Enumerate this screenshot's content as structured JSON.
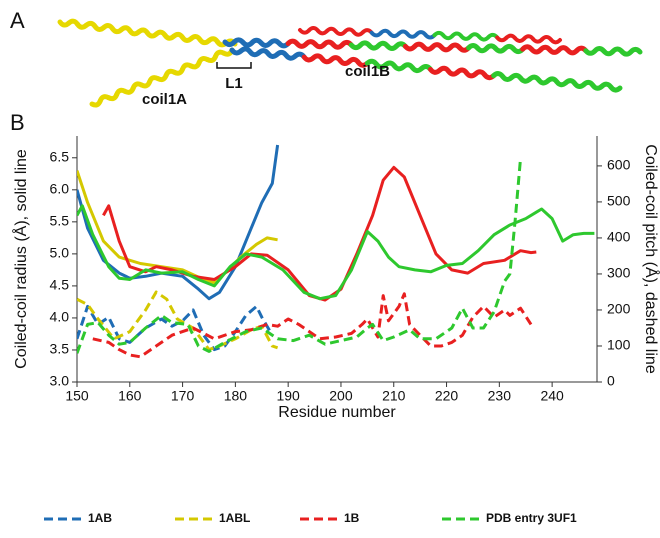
{
  "panel_a": {
    "letter": "A",
    "labels": [
      "coil1A",
      "L1",
      "coil1B"
    ]
  },
  "chart_data": {
    "type": "line",
    "panel_letter": "B",
    "x_label": "Residue number",
    "y_label": "Coiled-coil radius (Å),  solid line",
    "y2_label": "Coiled-coil pitch (Å), dashed line",
    "xlim": [
      150,
      248.5
    ],
    "xticks": [
      150,
      160,
      170,
      180,
      190,
      200,
      210,
      220,
      230,
      240
    ],
    "ylim": [
      3.0,
      6.84
    ],
    "yticks": [
      {
        "value": 3,
        "label": "3.0"
      },
      {
        "value": 3.5,
        "label": "3.5"
      },
      {
        "value": 4,
        "label": "4.0"
      },
      {
        "value": 4.5,
        "label": "4.5"
      },
      {
        "value": 5,
        "label": "5.0"
      },
      {
        "value": 5.5,
        "label": "5.5"
      },
      {
        "value": 6,
        "label": "6.0"
      },
      {
        "value": 6.5,
        "label": "6.5"
      }
    ],
    "y2lim": [
      0,
      683
    ],
    "y2ticks": [
      0,
      100,
      200,
      300,
      400,
      500,
      600
    ],
    "legend": "bottom",
    "grid": false,
    "series": [
      {
        "name": "1AB",
        "color": "#1f6db5",
        "radius": {
          "line_style": "solid",
          "x": [
            150,
            152,
            155,
            158,
            160,
            163,
            166,
            170,
            173,
            175,
            177,
            180,
            183,
            185,
            187,
            188
          ],
          "values": [
            6.0,
            5.4,
            4.9,
            4.7,
            4.62,
            4.65,
            4.7,
            4.65,
            4.45,
            4.3,
            4.4,
            4.8,
            5.4,
            5.8,
            6.1,
            6.7
          ]
        },
        "pitch": {
          "line_style": "dashed",
          "axis": "y2",
          "x": [
            150,
            152,
            154,
            156,
            158,
            160,
            163,
            166,
            168,
            170,
            172,
            174,
            176,
            178,
            180,
            182,
            184,
            185,
            187
          ],
          "values": [
            120,
            210,
            160,
            180,
            120,
            110,
            150,
            175,
            155,
            170,
            200,
            130,
            90,
            100,
            140,
            185,
            210,
            180,
            130
          ]
        }
      },
      {
        "name": "1ABL",
        "color": "#d4c800",
        "radius": {
          "line_style": "solid",
          "x": [
            150,
            152,
            155,
            158,
            162,
            166,
            170,
            174,
            176,
            178,
            181,
            184,
            186,
            188
          ],
          "values": [
            6.3,
            5.8,
            5.2,
            4.95,
            4.85,
            4.8,
            4.75,
            4.6,
            4.55,
            4.7,
            4.95,
            5.15,
            5.25,
            5.22
          ]
        },
        "pitch": {
          "line_style": "dashed",
          "axis": "y2",
          "x": [
            150,
            152,
            154,
            157,
            160,
            163,
            165,
            167,
            169,
            172,
            175,
            177,
            180,
            183,
            185,
            187,
            188
          ],
          "values": [
            230,
            215,
            175,
            120,
            140,
            200,
            250,
            230,
            175,
            150,
            90,
            100,
            120,
            145,
            155,
            100,
            95
          ]
        }
      },
      {
        "name": "1B",
        "color": "#e82020",
        "radius": {
          "line_style": "solid",
          "x": [
            155,
            156,
            158,
            160,
            163,
            165,
            168,
            172,
            176,
            180,
            183,
            186,
            190,
            194,
            197,
            200,
            203,
            206,
            208,
            210,
            212,
            215,
            218,
            221,
            224,
            227,
            231,
            234,
            236,
            237
          ],
          "values": [
            5.6,
            5.75,
            5.2,
            4.8,
            4.72,
            4.8,
            4.75,
            4.65,
            4.6,
            4.8,
            5.0,
            4.98,
            4.75,
            4.35,
            4.28,
            4.45,
            5.0,
            5.6,
            6.15,
            6.35,
            6.2,
            5.6,
            5.0,
            4.75,
            4.7,
            4.85,
            4.9,
            5.05,
            5.02,
            5.03
          ]
        },
        "pitch": {
          "line_style": "dashed",
          "axis": "y2",
          "x": [
            153,
            156,
            158,
            160,
            162,
            165,
            168,
            172,
            176,
            180,
            183,
            186,
            188,
            190,
            192,
            194,
            196,
            199,
            202,
            204,
            205,
            207,
            208,
            209,
            211,
            212,
            213,
            215,
            217,
            219,
            221,
            223,
            225,
            227,
            229,
            231,
            232,
            234,
            236
          ],
          "values": [
            120,
            110,
            90,
            75,
            70,
            100,
            130,
            150,
            120,
            140,
            145,
            160,
            155,
            175,
            160,
            140,
            120,
            125,
            135,
            160,
            175,
            125,
            240,
            170,
            210,
            245,
            160,
            130,
            100,
            100,
            110,
            130,
            180,
            210,
            180,
            200,
            185,
            205,
            160
          ]
        }
      },
      {
        "name": "PDB entry 3UF1",
        "color": "#2ec82e",
        "radius": {
          "line_style": "solid",
          "x": [
            150,
            151,
            153,
            156,
            158,
            160,
            163,
            166,
            170,
            173,
            176,
            179,
            182,
            185,
            189,
            193,
            196,
            199,
            202,
            205,
            207,
            209,
            211,
            214,
            217,
            220,
            223,
            226,
            229,
            232,
            235,
            237,
            238,
            240,
            242,
            244,
            246,
            248
          ],
          "values": [
            5.6,
            5.75,
            5.3,
            4.8,
            4.62,
            4.6,
            4.75,
            4.7,
            4.72,
            4.6,
            4.5,
            4.8,
            5.0,
            4.95,
            4.75,
            4.4,
            4.3,
            4.35,
            4.75,
            5.35,
            5.2,
            4.95,
            4.8,
            4.75,
            4.72,
            4.82,
            4.85,
            5.05,
            5.3,
            5.45,
            5.55,
            5.65,
            5.7,
            5.55,
            5.2,
            5.3,
            5.32,
            5.32
          ]
        },
        "pitch": {
          "line_style": "dashed",
          "axis": "y2",
          "x": [
            150,
            152,
            154,
            156,
            158,
            160,
            163,
            166,
            168,
            171,
            173,
            175,
            178,
            182,
            185,
            188,
            191,
            194,
            197,
            200,
            203,
            205,
            206,
            208,
            210,
            213,
            215,
            218,
            221,
            223,
            225,
            227,
            229,
            231,
            232,
            233,
            234
          ],
          "values": [
            80,
            160,
            165,
            130,
            105,
            110,
            150,
            185,
            165,
            160,
            100,
            85,
            110,
            140,
            150,
            120,
            115,
            130,
            105,
            115,
            125,
            150,
            160,
            115,
            125,
            145,
            120,
            120,
            150,
            205,
            150,
            150,
            195,
            280,
            300,
            450,
            620
          ]
        }
      }
    ]
  }
}
